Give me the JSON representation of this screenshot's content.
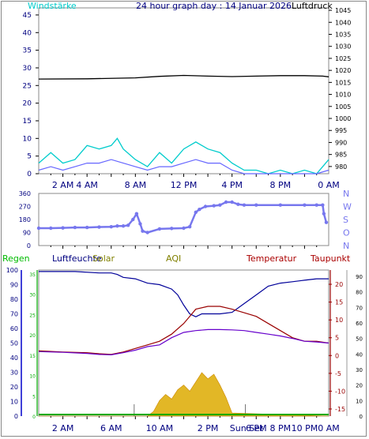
{
  "header": {
    "title": "24 hour graph day : 14 Januar 2026",
    "left_label": "Windstärke",
    "right_label": "Luftdruck"
  },
  "colors": {
    "frame": "#888888",
    "plot_bg": "#ffffff",
    "wind_speed": "#00cccc",
    "wind_avg": "#6666ff",
    "pressure": "#000000",
    "wind_dir": "#7777ee",
    "humidity": "#000099",
    "temperature": "#990000",
    "dewpoint": "#6600cc",
    "solar": "#ddaa00",
    "rain": "#00aa00",
    "rain_label": "#00bb00",
    "humidity_label": "#000080",
    "solar_label": "#808000",
    "aqi_label": "#808000",
    "temp_label": "#aa0000",
    "dew_label": "#aa0000",
    "title_color": "#000080",
    "windlabel_color": "#00cccc",
    "dir_axis_color": "#7777ee",
    "axis_text_color": "#000080",
    "time_label_color": "#000080"
  },
  "chart_data": [
    {
      "type": "line",
      "title": "24 hour graph day : 14 Januar 2026",
      "left_axis_label": "Windstärke",
      "right_axis_label": "Luftdruck",
      "x_unit": "hours",
      "x_ticks": [
        "2 AM",
        "4 AM",
        "8 AM",
        "12 PM",
        "4 PM",
        "8 PM",
        "0 AM"
      ],
      "x_tick_hours": [
        2,
        4,
        8,
        12,
        16,
        20,
        24
      ],
      "left_ylim": [
        0,
        47
      ],
      "left_ticks": [
        "0",
        "5",
        "10",
        "15",
        "20",
        "25",
        "30",
        "35",
        "40",
        "45"
      ],
      "right_ylim": [
        977,
        1046
      ],
      "right_ticks": [
        "980",
        "985",
        "990",
        "995",
        "1000",
        "1005",
        "1010",
        "1015",
        "1020",
        "1025",
        "1030",
        "1035",
        "1040",
        "1045"
      ],
      "series": [
        {
          "key": "pressure",
          "axis": "right",
          "x": [
            0,
            4,
            8,
            10,
            12,
            14,
            16,
            18,
            20,
            22,
            23.5,
            24
          ],
          "values": [
            1016.4,
            1016.5,
            1016.9,
            1017.5,
            1017.9,
            1017.6,
            1017.4,
            1017.6,
            1017.8,
            1017.8,
            1017.6,
            1017.3
          ]
        },
        {
          "key": "wind_speed",
          "axis": "left",
          "x": [
            0,
            1,
            2,
            3,
            4,
            5,
            6,
            6.5,
            7,
            8,
            9,
            10,
            11,
            12,
            13,
            14,
            15,
            16,
            17,
            18,
            19,
            20,
            21,
            22,
            23,
            23.5,
            24
          ],
          "values": [
            3,
            6,
            3,
            4,
            8,
            7,
            8,
            10,
            7,
            4,
            2,
            6,
            3,
            7,
            9,
            7,
            6,
            3,
            1,
            1,
            0,
            1,
            0,
            1,
            0,
            2,
            4
          ]
        },
        {
          "key": "wind_avg",
          "axis": "left",
          "x": [
            0,
            1,
            2,
            3,
            4,
            5,
            6,
            7,
            8,
            9,
            10,
            11,
            12,
            13,
            14,
            15,
            16,
            17,
            18,
            19,
            20,
            21,
            22,
            23,
            24
          ],
          "values": [
            1,
            2,
            1,
            2,
            3,
            3,
            4,
            3,
            2,
            1,
            2,
            2,
            3,
            4,
            3,
            3,
            1,
            0,
            0,
            0,
            0,
            0,
            0,
            0,
            1
          ]
        }
      ]
    },
    {
      "type": "scatter",
      "x_unit": "hours",
      "ylim": [
        0,
        360
      ],
      "y_ticks": [
        "0",
        "90",
        "180",
        "270",
        "360"
      ],
      "right_labels": [
        "N",
        "W",
        "S",
        "O",
        "N"
      ],
      "series": [
        {
          "key": "wind_dir",
          "name": "",
          "x": [
            0,
            1,
            2,
            3,
            4,
            5,
            6,
            6.5,
            7,
            7.4,
            7.8,
            8.1,
            8.4,
            8.6,
            9,
            10,
            11,
            12,
            12.5,
            13,
            13.3,
            13.8,
            14.5,
            15,
            15.5,
            16,
            16.5,
            17,
            18,
            20,
            22,
            23,
            23.5,
            23.6,
            23.8
          ],
          "values": [
            120,
            120,
            122,
            125,
            125,
            128,
            130,
            135,
            135,
            140,
            180,
            220,
            150,
            100,
            90,
            115,
            118,
            120,
            130,
            230,
            250,
            270,
            275,
            280,
            300,
            300,
            285,
            280,
            280,
            280,
            280,
            280,
            280,
            220,
            160
          ]
        }
      ]
    },
    {
      "type": "line",
      "x_unit": "hours",
      "x_ticks": [
        "2 AM",
        "6 AM",
        "10 AM",
        "2 PM",
        "6 PM",
        "8 PM",
        "10 PM",
        "0 AM"
      ],
      "x_tick_hours": [
        2,
        6,
        10,
        14,
        18,
        20,
        22,
        24
      ],
      "sun_label": "Sun Set",
      "legend": [
        "Regen",
        "Luftfeuchte",
        "Solar",
        "AQI",
        "Temperatur",
        "Taupunkt"
      ],
      "humidity_ylim": [
        0,
        100
      ],
      "humidity_ticks": [
        "0",
        "10",
        "20",
        "30",
        "40",
        "50",
        "60",
        "70",
        "80",
        "90",
        "100"
      ],
      "rain_ticks": [
        "0",
        "5",
        "10",
        "15",
        "20",
        "25",
        "30",
        "35"
      ],
      "temp_ylim": [
        -17,
        24
      ],
      "temp_ticks": [
        "-15",
        "-10",
        "-5",
        "0",
        "5",
        "10",
        "15",
        "20"
      ],
      "solar_ticks": [
        "0",
        "10",
        "20",
        "30",
        "40",
        "50",
        "60",
        "70",
        "80",
        "90"
      ],
      "series": [
        {
          "key": "humidity",
          "axis": "humidity",
          "x": [
            0,
            3,
            5,
            6,
            6.5,
            7,
            8,
            9,
            10,
            11,
            11.5,
            12,
            12.5,
            13,
            13.5,
            14,
            15,
            16,
            17,
            18,
            19,
            20,
            21,
            22,
            23,
            24
          ],
          "values": [
            99,
            99,
            98,
            98,
            97,
            95,
            94,
            91,
            90,
            87,
            83,
            76,
            70,
            68,
            70,
            70,
            70,
            71,
            77,
            83,
            89,
            91,
            92,
            93,
            94,
            94
          ]
        },
        {
          "key": "temperature",
          "axis": "temp",
          "x": [
            0,
            2,
            4,
            5,
            6,
            7,
            8,
            9,
            10,
            11,
            12,
            12.5,
            13,
            14,
            15,
            16,
            17,
            18,
            19,
            20,
            21,
            21.5,
            22,
            23,
            24
          ],
          "values": [
            1.3,
            1.0,
            0.8,
            0.5,
            0.3,
            1.0,
            2.0,
            3.0,
            4.0,
            6.0,
            9.0,
            11.0,
            13.0,
            13.8,
            13.8,
            13.0,
            12.0,
            11.0,
            9.0,
            7.0,
            5.0,
            4.5,
            4.0,
            4.0,
            3.5
          ]
        },
        {
          "key": "dewpoint",
          "axis": "temp",
          "x": [
            0,
            2,
            4,
            5,
            6,
            7,
            8,
            9,
            10,
            11,
            12,
            13,
            14,
            15,
            16,
            17,
            18,
            19,
            20,
            21,
            22,
            23,
            24
          ],
          "values": [
            1.1,
            0.9,
            0.6,
            0.3,
            0.2,
            0.8,
            1.5,
            2.5,
            3.0,
            5.0,
            6.5,
            7.0,
            7.3,
            7.3,
            7.2,
            7.0,
            6.5,
            6.0,
            5.5,
            4.8,
            4.0,
            3.8,
            3.5
          ]
        },
        {
          "key": "solar",
          "axis": "solar",
          "x": [
            0,
            9,
            9.5,
            10,
            10.5,
            11,
            11.5,
            12,
            12.5,
            13,
            13.5,
            14,
            14.5,
            15,
            15.5,
            16,
            24
          ],
          "values": [
            0,
            0,
            3,
            10,
            14,
            11,
            17,
            20,
            16,
            22,
            28,
            24,
            27,
            20,
            12,
            2,
            0
          ]
        },
        {
          "key": "rain",
          "axis": "rain",
          "x": [
            0,
            24
          ],
          "values": [
            0,
            0
          ]
        }
      ]
    }
  ]
}
